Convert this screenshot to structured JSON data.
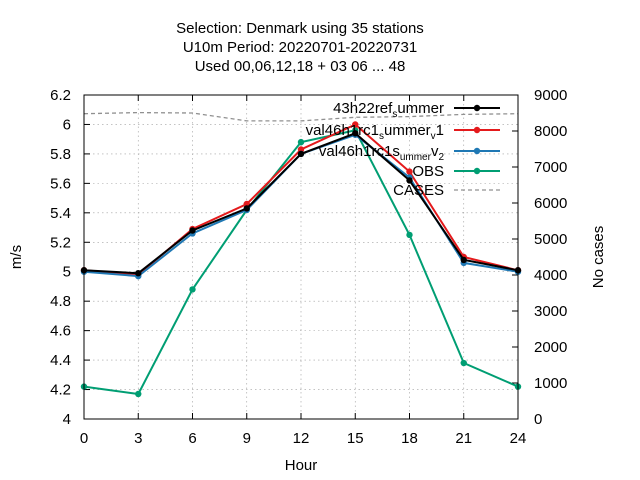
{
  "chart_data": {
    "type": "line",
    "title": [
      "Selection: Denmark using    35 stations",
      "U10m   Period: 20220701-20220731",
      "Used  00,06,12,18  + 03 06 ... 48"
    ],
    "xlabel": "Hour",
    "ylabel": "m/s",
    "y2label": "No cases",
    "x": [
      0,
      3,
      6,
      9,
      12,
      15,
      18,
      21,
      24
    ],
    "xticks": [
      "0",
      "3",
      "6",
      "9",
      "12",
      "15",
      "18",
      "21",
      "24"
    ],
    "xlim": [
      0,
      24
    ],
    "ylim": [
      4,
      6.2
    ],
    "yticks": [
      "4",
      "4.2",
      "4.4",
      "4.6",
      "4.8",
      "5",
      "5.2",
      "5.4",
      "5.6",
      "5.8",
      "6",
      "6.2"
    ],
    "y2lim": [
      0,
      9000
    ],
    "y2ticks": [
      "0",
      "1000",
      "2000",
      "3000",
      "4000",
      "5000",
      "6000",
      "7000",
      "8000",
      "9000"
    ],
    "grid": true,
    "legend_position": "top-right",
    "series": [
      {
        "name": "43h22_ref_summer",
        "legend_main": "43h22",
        "legend_parts": [
          [
            "",
            "ref"
          ],
          [
            "",
            "s"
          ],
          [
            "",
            "ummer"
          ]
        ],
        "color": "#000000",
        "dash": "",
        "marker": true,
        "axis": "y1",
        "values": [
          5.01,
          4.99,
          5.28,
          5.43,
          5.8,
          5.94,
          5.62,
          5.08,
          5.01
        ]
      },
      {
        "name": "val46h1rc1_summer_v1",
        "legend_main": "val46h1rc",
        "legend_parts": [
          [
            "",
            "1"
          ],
          [
            "",
            "s"
          ],
          [
            "",
            "ummer"
          ],
          [
            "",
            "v"
          ],
          [
            "",
            "1"
          ]
        ],
        "color": "#e41a1c",
        "dash": "",
        "marker": true,
        "axis": "y1",
        "values": [
          5.01,
          4.98,
          5.29,
          5.46,
          5.83,
          6.0,
          5.68,
          5.1,
          5.01
        ]
      },
      {
        "name": "val46h1rc1_summer_v2",
        "legend_main": "val46h1rc1",
        "legend_parts": [
          [
            "",
            "s"
          ],
          [
            "",
            "ummer"
          ],
          [
            "",
            "v"
          ],
          [
            "",
            "2"
          ]
        ],
        "color": "#1f78b4",
        "dash": "",
        "marker": true,
        "axis": "y1",
        "values": [
          5.0,
          4.97,
          5.26,
          5.42,
          5.8,
          5.93,
          5.64,
          5.06,
          5.0
        ]
      },
      {
        "name": "OBS",
        "color": "#009e73",
        "dash": "",
        "marker": true,
        "axis": "y1",
        "values": [
          4.22,
          4.17,
          4.88,
          5.42,
          5.88,
          5.96,
          5.25,
          4.38,
          4.22
        ]
      },
      {
        "name": "CASES",
        "color": "#909090",
        "dash": "4 3",
        "marker": false,
        "axis": "y2",
        "values": [
          8480,
          8510,
          8500,
          8280,
          8280,
          8380,
          8400,
          8460,
          8480
        ]
      }
    ]
  }
}
